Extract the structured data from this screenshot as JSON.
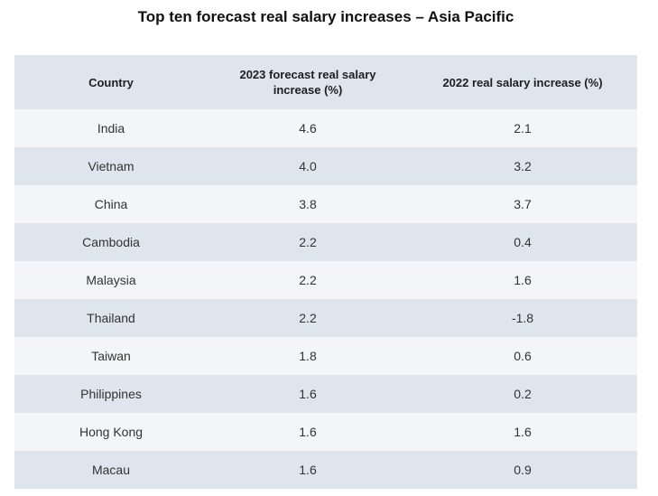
{
  "chart_data": {
    "type": "table",
    "title": "Top ten forecast real salary increases – Asia Pacific",
    "columns": [
      "Country",
      "2023 forecast real salary increase (%)",
      "2022 real salary increase (%)"
    ],
    "rows": [
      {
        "country": "India",
        "forecast_2023": "4.6",
        "actual_2022": "2.1"
      },
      {
        "country": "Vietnam",
        "forecast_2023": "4.0",
        "actual_2022": "3.2"
      },
      {
        "country": "China",
        "forecast_2023": "3.8",
        "actual_2022": "3.7"
      },
      {
        "country": "Cambodia",
        "forecast_2023": "2.2",
        "actual_2022": "0.4"
      },
      {
        "country": "Malaysia",
        "forecast_2023": "2.2",
        "actual_2022": "1.6"
      },
      {
        "country": "Thailand",
        "forecast_2023": "2.2",
        "actual_2022": "-1.8"
      },
      {
        "country": "Taiwan",
        "forecast_2023": "1.8",
        "actual_2022": "0.6"
      },
      {
        "country": "Philippines",
        "forecast_2023": "1.6",
        "actual_2022": "0.2"
      },
      {
        "country": "Hong Kong",
        "forecast_2023": "1.6",
        "actual_2022": "1.6"
      },
      {
        "country": "Macau",
        "forecast_2023": "1.6",
        "actual_2022": "0.9"
      }
    ]
  },
  "colors": {
    "header_bg": "#dfe5ed",
    "row_light": "#f3f5f8",
    "row_dark": "#dfe5ed"
  }
}
